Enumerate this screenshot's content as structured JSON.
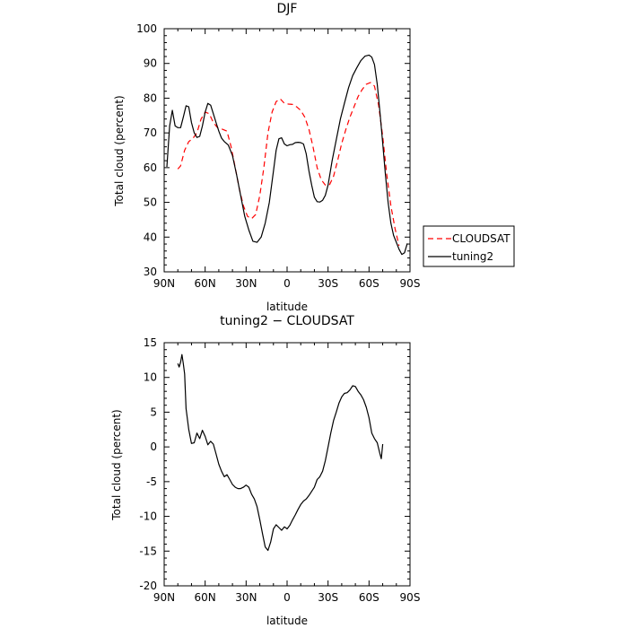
{
  "chart_data": [
    {
      "type": "line",
      "title": "DJF",
      "xlabel": "latitude",
      "ylabel": "Total cloud (percent)",
      "xlim": [
        90,
        -90
      ],
      "ylim": [
        30,
        100
      ],
      "x_ticks": [
        {
          "value": 90,
          "label": "90N"
        },
        {
          "value": 60,
          "label": "60N"
        },
        {
          "value": 30,
          "label": "30N"
        },
        {
          "value": 0,
          "label": "0"
        },
        {
          "value": -30,
          "label": "30S"
        },
        {
          "value": -60,
          "label": "60S"
        },
        {
          "value": -90,
          "label": "90S"
        }
      ],
      "y_ticks": [
        30,
        40,
        50,
        60,
        70,
        80,
        90,
        100
      ],
      "grid": false,
      "legend_position": "right",
      "series": [
        {
          "name": "CLOUDSAT",
          "color": "#ff0000",
          "dash": "dashed",
          "points": [
            [
              80,
              59.6
            ],
            [
              78,
              60.5
            ],
            [
              75,
              65
            ],
            [
              72,
              67.5
            ],
            [
              69,
              68.4
            ],
            [
              66,
              70
            ],
            [
              63,
              74
            ],
            [
              60,
              76
            ],
            [
              57,
              75.5
            ],
            [
              54,
              73
            ],
            [
              51,
              71.5
            ],
            [
              47,
              71
            ],
            [
              44,
              70.5
            ],
            [
              41,
              66
            ],
            [
              38,
              60
            ],
            [
              35,
              54
            ],
            [
              32,
              49
            ],
            [
              29,
              46
            ],
            [
              26,
              45.3
            ],
            [
              23,
              46.5
            ],
            [
              20,
              52
            ],
            [
              17,
              60
            ],
            [
              14,
              70
            ],
            [
              11,
              76
            ],
            [
              8,
              79
            ],
            [
              5,
              79.8
            ],
            [
              2,
              78.5
            ],
            [
              -1,
              78.3
            ],
            [
              -4,
              78.2
            ],
            [
              -7,
              77.5
            ],
            [
              -10,
              76.5
            ],
            [
              -13,
              74.5
            ],
            [
              -16,
              71
            ],
            [
              -19,
              66
            ],
            [
              -22,
              60
            ],
            [
              -25,
              56.5
            ],
            [
              -28,
              55
            ],
            [
              -31,
              55
            ],
            [
              -34,
              57.5
            ],
            [
              -37,
              62
            ],
            [
              -40,
              67
            ],
            [
              -43,
              71
            ],
            [
              -46,
              74.5
            ],
            [
              -49,
              77.5
            ],
            [
              -52,
              80.5
            ],
            [
              -55,
              82.5
            ],
            [
              -58,
              84
            ],
            [
              -61,
              84.5
            ],
            [
              -64,
              83.5
            ],
            [
              -67,
              78
            ],
            [
              -70,
              69
            ],
            [
              -73,
              58
            ],
            [
              -76,
              49
            ],
            [
              -79,
              42.5
            ],
            [
              -82,
              37.5
            ]
          ]
        },
        {
          "name": "tuning2",
          "color": "#000000",
          "dash": "solid",
          "points": [
            [
              88,
              60.2
            ],
            [
              86,
              72
            ],
            [
              84,
              76.5
            ],
            [
              82,
              72
            ],
            [
              80,
              71.5
            ],
            [
              78,
              71.5
            ],
            [
              76,
              74.5
            ],
            [
              74,
              77.8
            ],
            [
              72,
              77.5
            ],
            [
              70,
              73
            ],
            [
              68,
              70
            ],
            [
              66,
              68.7
            ],
            [
              64,
              69
            ],
            [
              62,
              72
            ],
            [
              60,
              76
            ],
            [
              58,
              78.5
            ],
            [
              56,
              78
            ],
            [
              54,
              75.5
            ],
            [
              52,
              73
            ],
            [
              50,
              70.5
            ],
            [
              48,
              68.5
            ],
            [
              46,
              67.5
            ],
            [
              43,
              66.5
            ],
            [
              40,
              63.5
            ],
            [
              37,
              58
            ],
            [
              34,
              52
            ],
            [
              31,
              46
            ],
            [
              28,
              42
            ],
            [
              25,
              38.8
            ],
            [
              22,
              38.5
            ],
            [
              19,
              40
            ],
            [
              16,
              44
            ],
            [
              13,
              50
            ],
            [
              10,
              59
            ],
            [
              8,
              65
            ],
            [
              6,
              68.3
            ],
            [
              4,
              68.6
            ],
            [
              2,
              66.8
            ],
            [
              0,
              66.3
            ],
            [
              -2,
              66.6
            ],
            [
              -4,
              66.7
            ],
            [
              -6,
              67.2
            ],
            [
              -8,
              67.3
            ],
            [
              -10,
              67.2
            ],
            [
              -12,
              66.8
            ],
            [
              -14,
              64
            ],
            [
              -16,
              59
            ],
            [
              -18,
              55
            ],
            [
              -20,
              51.5
            ],
            [
              -22,
              50.2
            ],
            [
              -24,
              50.1
            ],
            [
              -26,
              50.6
            ],
            [
              -28,
              52
            ],
            [
              -30,
              55
            ],
            [
              -33,
              62
            ],
            [
              -36,
              68
            ],
            [
              -39,
              74
            ],
            [
              -42,
              78.5
            ],
            [
              -45,
              83
            ],
            [
              -48,
              86.5
            ],
            [
              -51,
              88.7
            ],
            [
              -54,
              90.8
            ],
            [
              -57,
              92.1
            ],
            [
              -60,
              92.4
            ],
            [
              -62,
              91.8
            ],
            [
              -64,
              89.7
            ],
            [
              -66,
              84
            ],
            [
              -68,
              76
            ],
            [
              -70,
              67
            ],
            [
              -72,
              58
            ],
            [
              -74,
              50
            ],
            [
              -76,
              44
            ],
            [
              -78,
              40.5
            ],
            [
              -80,
              38.5
            ],
            [
              -82,
              36.5
            ],
            [
              -84,
              35
            ],
            [
              -86,
              35.5
            ],
            [
              -88,
              38.2
            ]
          ]
        }
      ]
    },
    {
      "type": "line",
      "title": "tuning2 − CLOUDSAT",
      "xlabel": "latitude",
      "ylabel": "Total cloud (percent)",
      "xlim": [
        90,
        -90
      ],
      "ylim": [
        -20,
        15
      ],
      "x_ticks": [
        {
          "value": 90,
          "label": "90N"
        },
        {
          "value": 60,
          "label": "60N"
        },
        {
          "value": 30,
          "label": "30N"
        },
        {
          "value": 0,
          "label": "0"
        },
        {
          "value": -30,
          "label": "30S"
        },
        {
          "value": -60,
          "label": "60S"
        },
        {
          "value": -90,
          "label": "90S"
        }
      ],
      "y_ticks": [
        -20,
        -15,
        -10,
        -5,
        0,
        5,
        10,
        15
      ],
      "grid": false,
      "series": [
        {
          "color": "#000000",
          "dash": "solid",
          "points": [
            [
              80,
              12
            ],
            [
              79,
              11.5
            ],
            [
              78,
              12.2
            ],
            [
              77,
              13.3
            ],
            [
              76,
              12
            ],
            [
              75,
              10.5
            ],
            [
              74,
              5.5
            ],
            [
              72,
              2.5
            ],
            [
              70,
              0.5
            ],
            [
              68,
              0.6
            ],
            [
              66,
              2
            ],
            [
              64,
              1.2
            ],
            [
              62,
              2.4
            ],
            [
              60,
              1.5
            ],
            [
              58,
              0.3
            ],
            [
              56,
              0.8
            ],
            [
              54,
              0.4
            ],
            [
              52,
              -1
            ],
            [
              50,
              -2.5
            ],
            [
              48,
              -3.5
            ],
            [
              46,
              -4.3
            ],
            [
              44,
              -4
            ],
            [
              42,
              -4.7
            ],
            [
              40,
              -5.4
            ],
            [
              38,
              -5.8
            ],
            [
              36,
              -6
            ],
            [
              34,
              -6
            ],
            [
              32,
              -5.8
            ],
            [
              30,
              -5.5
            ],
            [
              28,
              -5.8
            ],
            [
              26,
              -6.8
            ],
            [
              24,
              -7.5
            ],
            [
              22,
              -8.6
            ],
            [
              20,
              -10.5
            ],
            [
              18,
              -12.5
            ],
            [
              16,
              -14.4
            ],
            [
              14,
              -14.9
            ],
            [
              12,
              -13.7
            ],
            [
              10,
              -11.8
            ],
            [
              8,
              -11.2
            ],
            [
              6,
              -11.6
            ],
            [
              4,
              -12
            ],
            [
              2,
              -11.5
            ],
            [
              0,
              -11.8
            ],
            [
              -2,
              -11.3
            ],
            [
              -4,
              -10.5
            ],
            [
              -6,
              -9.8
            ],
            [
              -8,
              -9
            ],
            [
              -10,
              -8.3
            ],
            [
              -12,
              -7.8
            ],
            [
              -14,
              -7.5
            ],
            [
              -16,
              -7
            ],
            [
              -18,
              -6.4
            ],
            [
              -20,
              -5.8
            ],
            [
              -22,
              -4.7
            ],
            [
              -24,
              -4.3
            ],
            [
              -26,
              -3.5
            ],
            [
              -28,
              -2
            ],
            [
              -30,
              0
            ],
            [
              -32,
              2
            ],
            [
              -34,
              3.8
            ],
            [
              -36,
              5
            ],
            [
              -38,
              6.3
            ],
            [
              -40,
              7.2
            ],
            [
              -42,
              7.7
            ],
            [
              -44,
              7.8
            ],
            [
              -46,
              8.2
            ],
            [
              -48,
              8.8
            ],
            [
              -50,
              8.7
            ],
            [
              -52,
              8
            ],
            [
              -54,
              7.5
            ],
            [
              -56,
              6.8
            ],
            [
              -58,
              5.7
            ],
            [
              -60,
              4.2
            ],
            [
              -62,
              2
            ],
            [
              -64,
              1.2
            ],
            [
              -66,
              0.6
            ],
            [
              -68,
              -1
            ],
            [
              -69,
              -1.7
            ],
            [
              -70,
              0.4
            ]
          ]
        }
      ]
    }
  ]
}
